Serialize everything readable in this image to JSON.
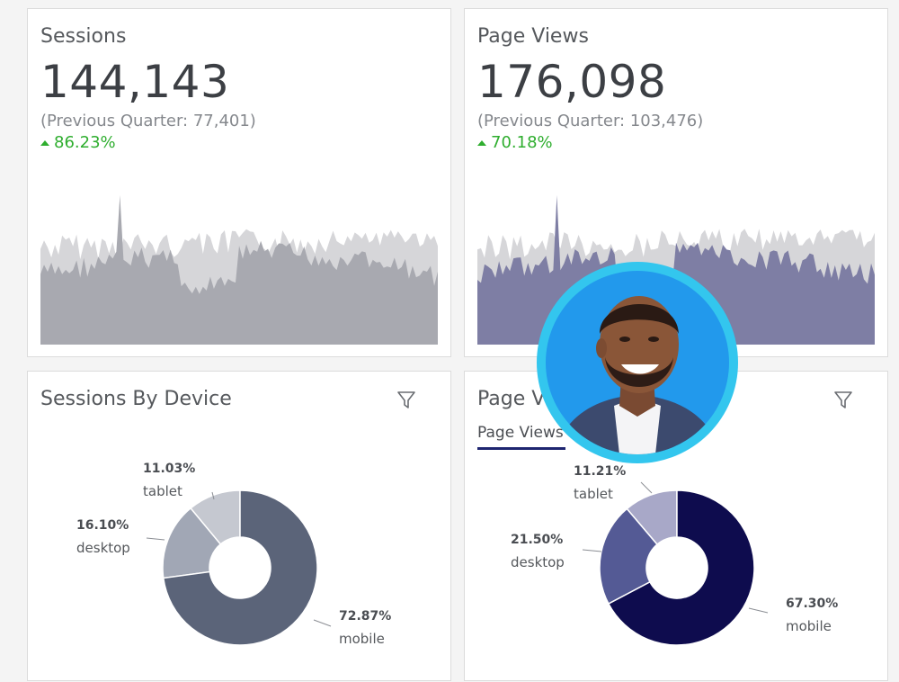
{
  "sessions": {
    "title": "Sessions",
    "value": "144,143",
    "previous": "(Previous Quarter: 77,401)",
    "change": "86.23%",
    "color_current": "#a8a9b0",
    "color_previous": "#d6d6d9"
  },
  "page_views": {
    "title": "Page Views",
    "value": "176,098",
    "previous": "(Previous Quarter: 103,476)",
    "change": "70.18%",
    "color_current": "#7e7ea4",
    "color_previous": "#d6d6d9"
  },
  "sessions_by_device": {
    "title": "Sessions By Device",
    "segments": [
      {
        "pct": "11.03%",
        "name": "tablet",
        "color": "#c5c8d0"
      },
      {
        "pct": "16.10%",
        "name": "desktop",
        "color": "#a1a7b5"
      },
      {
        "pct": "72.87%",
        "name": "mobile",
        "color": "#5b6479"
      }
    ]
  },
  "page_views_by_device": {
    "title": "Page V",
    "tab": "Page Views",
    "segments": [
      {
        "pct": "11.21%",
        "name": "tablet",
        "color": "#a8a8c8"
      },
      {
        "pct": "21.50%",
        "name": "desktop",
        "color": "#545a95"
      },
      {
        "pct": "67.30%",
        "name": "mobile",
        "color": "#0e0c4e"
      }
    ]
  },
  "chart_data": [
    {
      "type": "pie",
      "title": "Sessions By Device",
      "categories": [
        "tablet",
        "desktop",
        "mobile"
      ],
      "values": [
        11.03,
        16.1,
        72.87
      ]
    },
    {
      "type": "pie",
      "title": "Page Views",
      "categories": [
        "tablet",
        "desktop",
        "mobile"
      ],
      "values": [
        11.21,
        21.5,
        67.3
      ]
    }
  ]
}
